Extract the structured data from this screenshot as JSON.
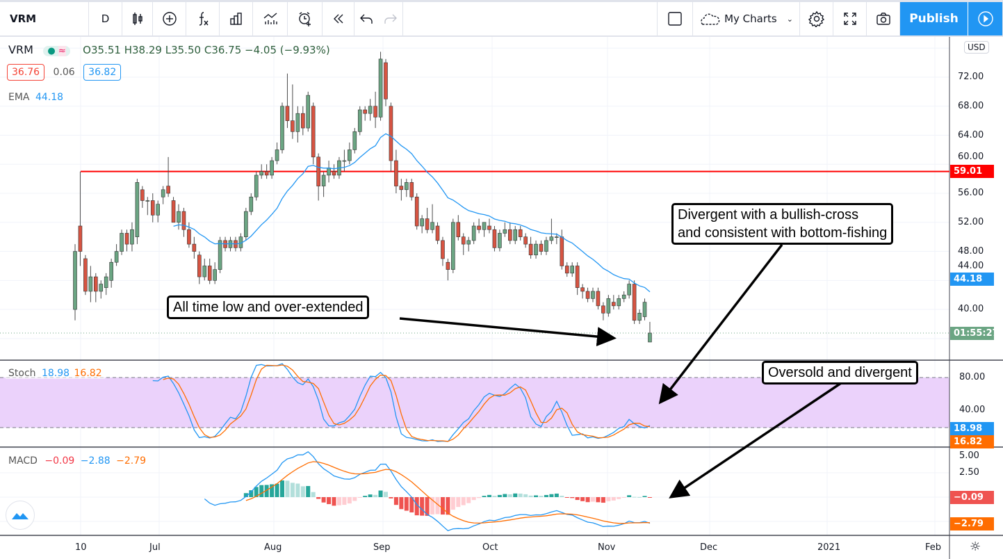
{
  "toolbar": {
    "symbol": "VRM",
    "interval": "D",
    "items": [
      "candles-icon",
      "add-compare-icon",
      "indicators-icon",
      "templates-icon",
      "compare-icon",
      "alert-icon",
      "replay-icon",
      "undo-icon",
      "redo-icon"
    ],
    "my_charts": "My Charts",
    "publish": "Publish"
  },
  "legend": {
    "symbol": "VRM",
    "ohlc": {
      "o_label": "O",
      "o": "35.51",
      "h_label": "H",
      "h": "38.29",
      "l_label": "L",
      "l": "35.50",
      "c_label": "C",
      "c": "36.75",
      "change": "−4.05 (−9.93%)"
    },
    "bid": "36.76",
    "spread": "0.06",
    "ask": "36.82",
    "ema_label": "EMA",
    "ema": "44.18"
  },
  "stoch_legend": {
    "label": "Stoch",
    "k": "18.98",
    "d": "16.82"
  },
  "macd_legend": {
    "label": "MACD",
    "hist": "−0.09",
    "macd": "−2.88",
    "signal": "−2.79"
  },
  "price_axis": {
    "currency": "USD",
    "labels": [
      "72.00",
      "68.00",
      "64.00",
      "60.00",
      "56.00",
      "52.00",
      "48.00",
      "44.00",
      "40.00"
    ],
    "tags": {
      "hline": "59.01",
      "ema": "44.18",
      "countdown": "01:55:27"
    }
  },
  "stoch_axis": {
    "labels": [
      "80.00",
      "40.00"
    ],
    "tags": {
      "k": "18.98",
      "d": "16.82"
    }
  },
  "macd_axis": {
    "labels": [
      "5.00",
      "2.50"
    ],
    "tags": {
      "hist": "−0.09",
      "signal": "−2.79"
    }
  },
  "time_axis": [
    "10",
    "Jul",
    "Aug",
    "Sep",
    "Oct",
    "Nov",
    "Dec",
    "2021",
    "Feb"
  ],
  "annotations": {
    "a1": "All time low and over-extended",
    "a2_line1": "Divergent with a bullish-cross",
    "a2_line2": "and consistent with bottom-fishing",
    "a3": "Oversold and divergent"
  },
  "colors": {
    "up": "#6ba583",
    "down": "#d75442",
    "ema": "#2196f3",
    "hline": "#ff0000",
    "stoch_k": "#2196f3",
    "stoch_d": "#ff6d00",
    "macd": "#2196f3",
    "signal": "#ff6d00"
  },
  "chart_data": {
    "type": "candlestick",
    "hline": 59.01,
    "ema_period": 20,
    "ylim": [
      34,
      76
    ],
    "candles": [
      [
        40,
        49,
        38.5,
        48
      ],
      [
        51.5,
        59,
        46,
        48
      ],
      [
        47,
        47.5,
        42,
        42.5
      ],
      [
        42.5,
        46,
        41,
        44.5
      ],
      [
        44.5,
        45,
        41,
        42.5
      ],
      [
        42.5,
        44,
        41.5,
        43.5
      ],
      [
        43,
        45,
        42,
        44.5
      ],
      [
        44,
        47,
        43,
        46.5
      ],
      [
        46.5,
        49,
        46,
        48
      ],
      [
        48,
        51,
        47.5,
        50.5
      ],
      [
        50.5,
        51,
        48,
        49
      ],
      [
        49,
        52,
        48,
        51
      ],
      [
        50,
        58,
        49,
        57.5
      ],
      [
        56.5,
        57,
        54,
        55
      ],
      [
        55,
        55.5,
        53,
        55
      ],
      [
        55,
        56,
        52,
        53
      ],
      [
        53,
        55,
        52,
        54.5
      ],
      [
        55.5,
        57,
        54.5,
        56.5
      ],
      [
        57,
        61,
        55.5,
        56
      ],
      [
        55,
        55.5,
        52,
        52
      ],
      [
        52,
        54.5,
        51,
        53.5
      ],
      [
        53.5,
        54,
        50,
        51
      ],
      [
        51,
        52,
        48.5,
        49
      ],
      [
        49,
        50,
        47,
        48
      ],
      [
        47.5,
        48,
        43.5,
        44.5
      ],
      [
        44.5,
        47,
        44,
        46
      ],
      [
        46,
        47,
        43.5,
        44
      ],
      [
        44,
        46.5,
        43.5,
        45.5
      ],
      [
        45.5,
        50,
        45,
        49.5
      ],
      [
        49.5,
        50,
        48,
        48.5
      ],
      [
        48.5,
        50,
        48,
        49.5
      ],
      [
        49.5,
        50,
        48,
        48.5
      ],
      [
        48.5,
        50.5,
        48,
        50
      ],
      [
        50,
        54,
        49.5,
        53.5
      ],
      [
        53.5,
        56,
        53,
        55.5
      ],
      [
        55.5,
        59,
        55,
        58.5
      ],
      [
        58.5,
        60,
        58,
        59
      ],
      [
        59,
        60,
        58,
        58.5
      ],
      [
        58.5,
        61,
        58,
        60.5
      ],
      [
        60.5,
        63,
        60,
        62
      ],
      [
        62,
        68.5,
        61.5,
        68
      ],
      [
        68,
        72.5,
        65,
        66
      ],
      [
        66,
        71,
        63.5,
        64.5
      ],
      [
        64.5,
        68,
        63,
        67
      ],
      [
        67,
        68,
        64,
        65
      ],
      [
        65,
        70,
        64.5,
        69.5
      ],
      [
        68,
        68.5,
        60,
        61
      ],
      [
        61,
        61.5,
        55,
        57
      ],
      [
        57,
        59,
        55.5,
        58.5
      ],
      [
        58.5,
        60.5,
        57.5,
        59.5
      ],
      [
        59,
        60,
        58,
        58.5
      ],
      [
        58.5,
        61,
        58,
        60.5
      ],
      [
        60.5,
        62,
        59,
        60.5
      ],
      [
        60.5,
        63,
        60,
        62
      ],
      [
        62,
        65,
        61.5,
        64.5
      ],
      [
        64.5,
        68,
        64,
        67.5
      ],
      [
        67.5,
        68,
        66,
        67
      ],
      [
        67,
        69,
        66,
        68
      ],
      [
        68,
        70,
        65,
        66.5
      ],
      [
        66.5,
        75.5,
        66,
        74.5
      ],
      [
        74,
        74.5,
        68,
        69
      ],
      [
        68,
        68.5,
        59,
        60.5
      ],
      [
        60.5,
        62,
        56,
        57
      ],
      [
        57,
        58,
        55,
        56.5
      ],
      [
        56.5,
        58,
        55.5,
        57.5
      ],
      [
        57.5,
        58,
        55,
        55.5
      ],
      [
        55.5,
        56,
        51,
        51.5
      ],
      [
        51.5,
        53,
        50.5,
        52.5
      ],
      [
        52.5,
        54,
        50.5,
        51
      ],
      [
        51,
        54.5,
        50.5,
        52
      ],
      [
        51.5,
        52,
        49,
        49.5
      ],
      [
        49.5,
        50,
        46,
        47
      ],
      [
        46.5,
        47,
        44,
        45.5
      ],
      [
        45.5,
        52.5,
        45,
        52
      ],
      [
        52,
        53,
        49.5,
        50
      ],
      [
        50,
        50.5,
        47.5,
        49
      ],
      [
        49,
        50,
        48,
        49.5
      ],
      [
        49.5,
        52,
        49,
        51.5
      ],
      [
        51.5,
        52.5,
        50.5,
        51
      ],
      [
        51,
        52,
        50,
        52
      ],
      [
        51.5,
        52.5,
        50.5,
        51
      ],
      [
        51,
        51.5,
        48,
        48.5
      ],
      [
        48.5,
        51,
        48,
        50.5
      ],
      [
        50.5,
        52,
        50,
        51
      ],
      [
        51,
        52,
        49,
        49.5
      ],
      [
        49.5,
        51.5,
        49,
        51
      ],
      [
        51,
        51.5,
        49.5,
        50
      ],
      [
        50,
        50.5,
        48.5,
        49
      ],
      [
        49,
        50,
        47,
        47.5
      ],
      [
        47.5,
        49.5,
        47,
        49
      ],
      [
        49,
        49.5,
        47.5,
        48
      ],
      [
        48,
        50,
        47.5,
        49.5
      ],
      [
        49.5,
        52.5,
        49,
        50
      ],
      [
        50,
        50.5,
        49,
        50
      ],
      [
        50,
        51,
        45.5,
        46
      ],
      [
        46,
        46.5,
        44.5,
        45
      ],
      [
        45,
        46.5,
        44.5,
        46
      ],
      [
        46,
        46.5,
        42,
        43
      ],
      [
        43,
        43.5,
        41.5,
        42.5
      ],
      [
        42.5,
        43,
        41,
        41.5
      ],
      [
        41.5,
        43,
        41,
        42.5
      ],
      [
        42.5,
        43,
        40,
        40.5
      ],
      [
        40.5,
        41,
        38.5,
        39.5
      ],
      [
        39.5,
        42,
        39,
        41.5
      ],
      [
        41,
        42,
        40,
        40.5
      ],
      [
        40.5,
        42,
        40,
        41.5
      ],
      [
        41.5,
        42.5,
        41,
        42
      ],
      [
        42,
        44,
        41.5,
        43.5
      ],
      [
        43.5,
        44,
        38,
        38.5
      ],
      [
        38.5,
        40,
        38,
        39.5
      ],
      [
        39,
        41.5,
        38.5,
        41
      ],
      [
        35.51,
        38.29,
        35.5,
        36.75
      ]
    ]
  }
}
